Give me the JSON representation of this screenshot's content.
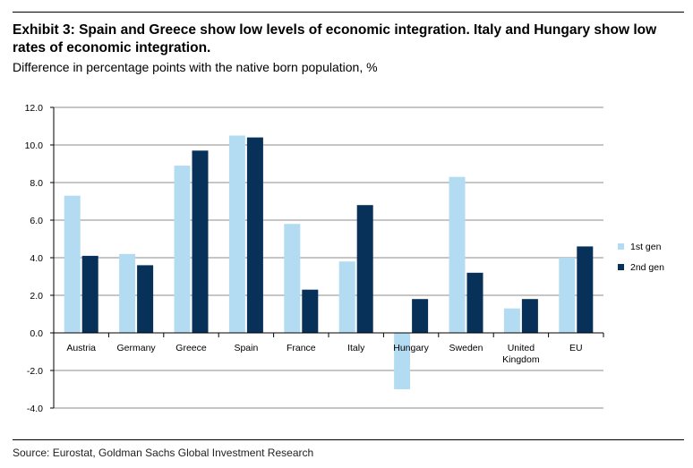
{
  "header": {
    "title": "Exhibit 3: Spain and Greece show low levels of economic integration. Italy and Hungary show low rates of economic integration.",
    "subtitle": "Difference in percentage points with the native born population, %"
  },
  "footer": {
    "source": "Source: Eurostat, Goldman Sachs Global Investment Research"
  },
  "colors": {
    "first_gen": "#b3dcf3",
    "second_gen": "#08315a",
    "grid": "#8c8c8c",
    "axis": "#000000"
  },
  "chart_data": {
    "type": "bar",
    "title": "Exhibit 3: Spain and Greece show low levels of economic integration. Italy and Hungary show low rates of economic integration.",
    "ylabel": "Difference in percentage points with the native born population, %",
    "xlabel": "",
    "categories": [
      "Austria",
      "Germany",
      "Greece",
      "Spain",
      "France",
      "Italy",
      "Hungary",
      "Sweden",
      "United Kingdom",
      "EU"
    ],
    "category_lines": [
      [
        "Austria"
      ],
      [
        "Germany"
      ],
      [
        "Greece"
      ],
      [
        "Spain"
      ],
      [
        "France"
      ],
      [
        "Italy"
      ],
      [
        "Hungary"
      ],
      [
        "Sweden"
      ],
      [
        "United",
        "Kingdom"
      ],
      [
        "EU"
      ]
    ],
    "series": [
      {
        "name": "1st gen",
        "values": [
          7.3,
          4.2,
          8.9,
          10.5,
          5.8,
          3.8,
          -3.0,
          8.3,
          1.3,
          4.0
        ]
      },
      {
        "name": "2nd gen",
        "values": [
          4.1,
          3.6,
          9.7,
          10.4,
          2.3,
          6.8,
          1.8,
          3.2,
          1.8,
          4.6
        ]
      }
    ],
    "ylim": [
      -4.0,
      12.0
    ],
    "yticks": [
      12.0,
      10.0,
      8.0,
      6.0,
      4.0,
      2.0,
      0.0,
      -2.0,
      -4.0
    ],
    "ytick_labels": [
      "12.0",
      "10.0",
      "8.0",
      "6.0",
      "4.0",
      "2.0",
      "0.0",
      "-2.0",
      "-4.0"
    ],
    "grid": true,
    "legend": "right"
  }
}
